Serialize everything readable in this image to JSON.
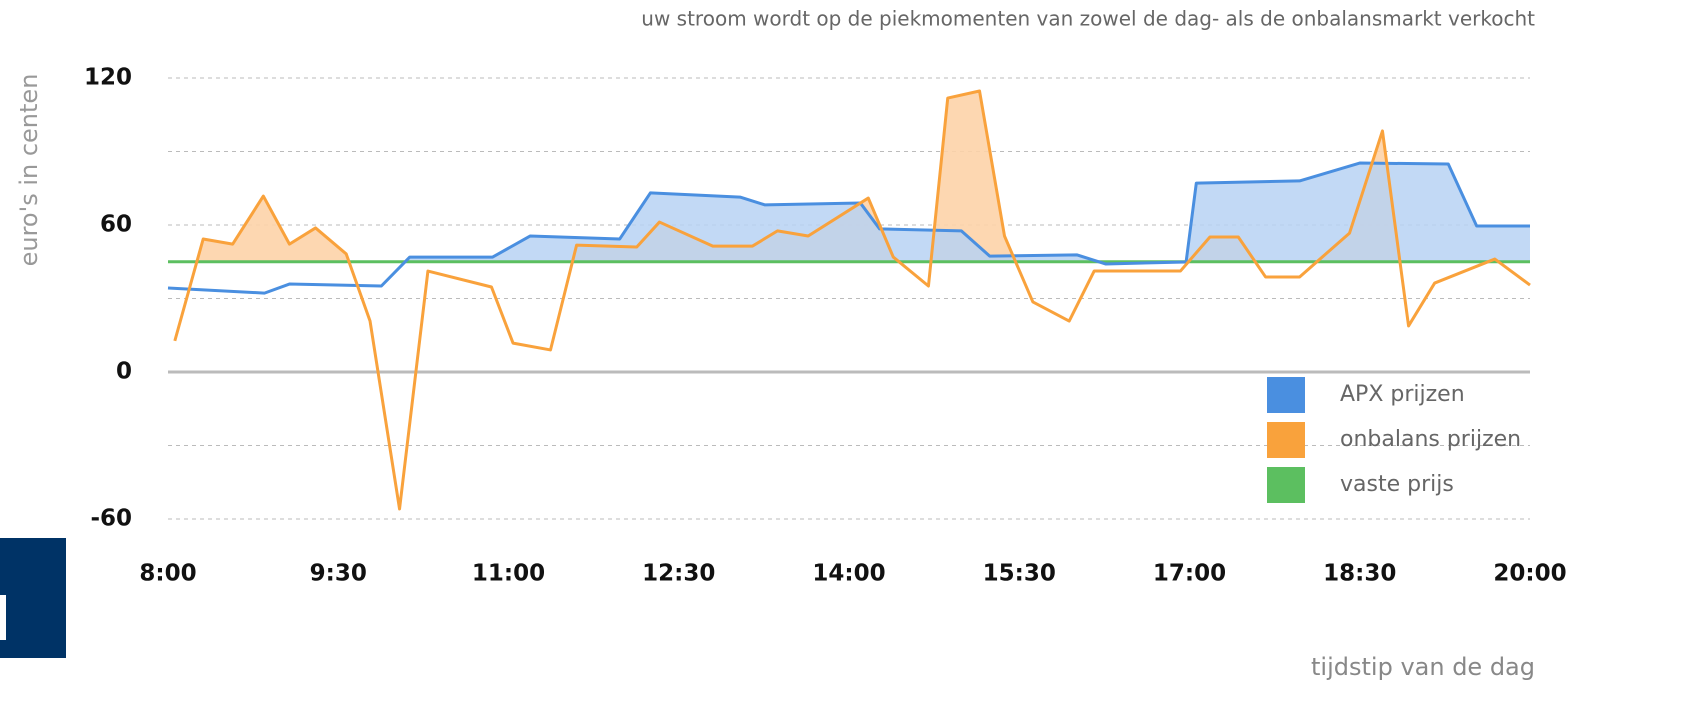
{
  "chart_data": {
    "type": "line",
    "title": "uw stroom wordt op de piekmomenten van zowel de dag- als de onbalansmarkt verkocht",
    "y_label": "euro's in centen",
    "x_label": "tijdstip van de dag",
    "xlim": [
      8,
      20
    ],
    "xticks": [
      {
        "value": 8,
        "label": "8:00"
      },
      {
        "value": 9.5,
        "label": "9:30"
      },
      {
        "value": 11,
        "label": "11:00"
      },
      {
        "value": 12.5,
        "label": "12:30"
      },
      {
        "value": 14,
        "label": "14:00"
      },
      {
        "value": 15.5,
        "label": "15:30"
      },
      {
        "value": 17,
        "label": "17:00"
      },
      {
        "value": 18.5,
        "label": "18:30"
      },
      {
        "value": 20,
        "label": "20:00"
      }
    ],
    "ylim": [
      -60,
      120
    ],
    "yticks": [
      -60,
      0,
      60,
      120
    ],
    "yminor": [
      -30,
      30,
      90
    ],
    "grid": true,
    "legend": "lower right",
    "series": [
      {
        "name": "APX prijzen",
        "color": "#4a8fe0",
        "fill": "#b7d2f3",
        "x": [
          8,
          8.85,
          9.07,
          9.88,
          10.13,
          10.86,
          11.19,
          11.98,
          12.25,
          13.04,
          13.26,
          14.1,
          14.27,
          14.99,
          15.24,
          16.01,
          16.26,
          16.97,
          17.06,
          17.97,
          18.5,
          19.28,
          19.53,
          20
        ],
        "values": [
          34.3,
          32.2,
          35.9,
          35.1,
          46.9,
          46.9,
          55.5,
          54.3,
          73.1,
          71.4,
          68.2,
          69,
          58.4,
          57.6,
          47.3,
          47.8,
          44.1,
          44.9,
          77.1,
          78,
          85.3,
          84.9,
          59.6,
          59.6
        ]
      },
      {
        "name": "onbalans prijzen",
        "color": "#f9a23c",
        "fill": "#fdd3a8",
        "x": [
          8.06,
          8.31,
          8.57,
          8.84,
          9.07,
          9.3,
          9.57,
          9.78,
          10.04,
          10.29,
          10.85,
          11.04,
          11.37,
          11.6,
          12.13,
          12.33,
          12.8,
          13.15,
          13.37,
          13.64,
          14.17,
          14.39,
          14.7,
          14.87,
          15.15,
          15.37,
          15.62,
          15.94,
          16.16,
          16.92,
          17.18,
          17.43,
          17.67,
          17.97,
          18.41,
          18.7,
          18.93,
          19.16,
          19.69,
          20
        ],
        "values": [
          12.7,
          54.3,
          52.2,
          71.8,
          52.2,
          58.8,
          48.2,
          20.8,
          -55.9,
          41.2,
          34.7,
          11.8,
          9,
          51.8,
          51,
          61.2,
          51.4,
          51.4,
          57.6,
          55.5,
          71,
          46.9,
          35.1,
          111.8,
          114.7,
          55.5,
          28.6,
          20.8,
          41.2,
          41.2,
          55.1,
          55.1,
          38.8,
          38.8,
          56.7,
          98.4,
          18.8,
          36.3,
          46.1,
          35.5
        ]
      },
      {
        "name": "vaste prijs",
        "color": "#5cbf60",
        "x": [
          8,
          20
        ],
        "values": [
          45,
          45
        ]
      }
    ]
  }
}
